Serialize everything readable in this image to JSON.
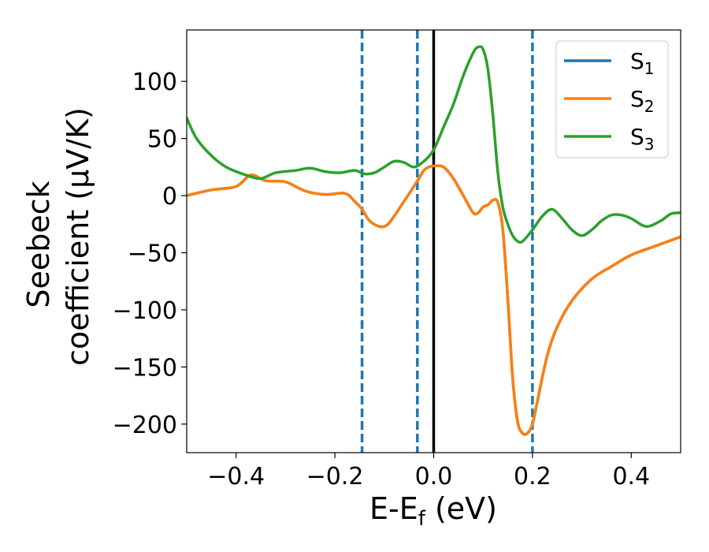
{
  "chart_data": {
    "type": "line",
    "xlabel": "E-E",
    "xlabel_sub": "f",
    "xlabel_unit": " (eV)",
    "ylabel_line1": "Seebeck",
    "ylabel_line2": "coefficient  (μV/K)",
    "xlim": [
      -0.5,
      0.5
    ],
    "ylim": [
      -225,
      145
    ],
    "xticks": [
      -0.4,
      -0.2,
      0.0,
      0.2,
      0.4
    ],
    "xtick_labels": [
      "−0.4",
      "−0.2",
      "0.0",
      "0.2",
      "0.4"
    ],
    "yticks": [
      -200,
      -150,
      -100,
      -50,
      0,
      50,
      100
    ],
    "ytick_labels": [
      "−200",
      "−150",
      "−100",
      "−50",
      "0",
      "50",
      "100"
    ],
    "grid": false,
    "legend_position": "top-right",
    "vlines": [
      {
        "x": -0.145,
        "style": "dashed",
        "color": "#1f77b4"
      },
      {
        "x": -0.033,
        "style": "dashed",
        "color": "#1f77b4"
      },
      {
        "x": 0.0,
        "style": "solid",
        "color": "#000000"
      },
      {
        "x": 0.2,
        "style": "dashed",
        "color": "#1f77b4"
      }
    ],
    "series": [
      {
        "name": "S",
        "name_sub": "1",
        "color": "#1f77b4",
        "x": [
          -0.5,
          -0.45,
          -0.4,
          -0.37,
          -0.34,
          -0.3,
          -0.26,
          -0.22,
          -0.18,
          -0.16,
          -0.145,
          -0.13,
          -0.11,
          -0.095,
          -0.08,
          -0.06,
          -0.04,
          -0.03,
          -0.02,
          -0.01,
          0.0,
          0.02,
          0.04,
          0.06,
          0.08,
          0.09,
          0.1,
          0.11,
          0.12,
          0.13,
          0.14,
          0.15,
          0.16,
          0.17,
          0.18,
          0.19,
          0.2,
          0.21,
          0.23,
          0.25,
          0.28,
          0.32,
          0.36,
          0.4,
          0.45,
          0.5
        ],
        "y": [
          0,
          5,
          8,
          18,
          13,
          12,
          4,
          1,
          2,
          -5,
          -12,
          -22,
          -27,
          -26,
          -18,
          -5,
          8,
          15,
          22,
          25,
          26,
          25,
          15,
          0,
          -15,
          -15,
          -10,
          -8,
          -4,
          -6,
          -30,
          -90,
          -160,
          -198,
          -208,
          -208,
          -200,
          -180,
          -140,
          -115,
          -92,
          -73,
          -62,
          -52,
          -44,
          -36
        ]
      },
      {
        "name": "S",
        "name_sub": "2",
        "color": "#ff7f0e",
        "x": [
          -0.5,
          -0.45,
          -0.4,
          -0.37,
          -0.34,
          -0.3,
          -0.26,
          -0.22,
          -0.18,
          -0.16,
          -0.145,
          -0.13,
          -0.11,
          -0.095,
          -0.08,
          -0.06,
          -0.04,
          -0.03,
          -0.02,
          -0.01,
          0.0,
          0.02,
          0.04,
          0.06,
          0.08,
          0.09,
          0.1,
          0.11,
          0.12,
          0.13,
          0.14,
          0.15,
          0.16,
          0.17,
          0.18,
          0.19,
          0.2,
          0.21,
          0.23,
          0.25,
          0.28,
          0.32,
          0.36,
          0.4,
          0.45,
          0.5
        ],
        "y": [
          0,
          5,
          8,
          18,
          13,
          12,
          4,
          1,
          2,
          -5,
          -12,
          -22,
          -27,
          -26,
          -18,
          -5,
          8,
          15,
          22,
          25,
          26,
          25,
          15,
          0,
          -15,
          -15,
          -10,
          -8,
          -4,
          -6,
          -30,
          -90,
          -160,
          -198,
          -208,
          -208,
          -200,
          -180,
          -140,
          -115,
          -92,
          -73,
          -62,
          -52,
          -44,
          -36
        ]
      },
      {
        "name": "S",
        "name_sub": "3",
        "color": "#2ca02c",
        "x": [
          -0.5,
          -0.48,
          -0.45,
          -0.42,
          -0.38,
          -0.35,
          -0.32,
          -0.28,
          -0.25,
          -0.22,
          -0.19,
          -0.16,
          -0.14,
          -0.12,
          -0.1,
          -0.08,
          -0.06,
          -0.04,
          -0.02,
          0.0,
          0.02,
          0.04,
          0.06,
          0.08,
          0.09,
          0.1,
          0.11,
          0.12,
          0.13,
          0.14,
          0.15,
          0.16,
          0.17,
          0.18,
          0.2,
          0.22,
          0.24,
          0.26,
          0.28,
          0.3,
          0.32,
          0.34,
          0.36,
          0.38,
          0.4,
          0.43,
          0.46,
          0.48,
          0.5
        ],
        "y": [
          68,
          50,
          35,
          25,
          18,
          15,
          20,
          22,
          24,
          21,
          20,
          22,
          19,
          20,
          25,
          30,
          29,
          25,
          30,
          40,
          60,
          80,
          105,
          125,
          130,
          128,
          110,
          70,
          20,
          -10,
          -25,
          -35,
          -40,
          -40,
          -30,
          -18,
          -12,
          -20,
          -30,
          -35,
          -30,
          -22,
          -17,
          -17,
          -20,
          -27,
          -22,
          -16,
          -15
        ]
      }
    ]
  }
}
